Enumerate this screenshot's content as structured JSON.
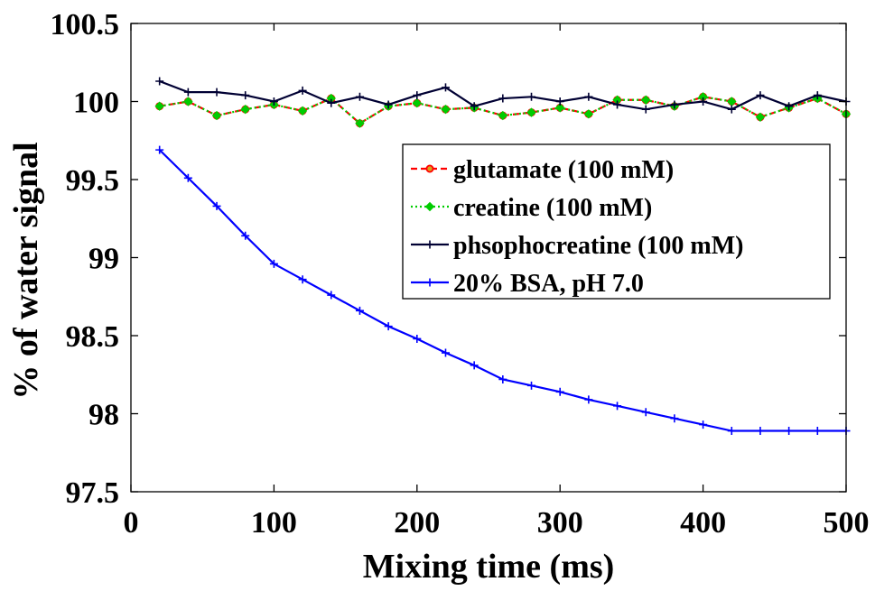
{
  "chart_data": {
    "type": "line",
    "title": "",
    "xlabel": "Mixing time (ms)",
    "ylabel": "% of water signal",
    "xlim": [
      0,
      500
    ],
    "ylim": [
      97.5,
      100.5
    ],
    "xticks": [
      0,
      100,
      200,
      300,
      400,
      500
    ],
    "xtick_labels": [
      "0",
      "100",
      "200",
      "300",
      "400",
      "500"
    ],
    "yticks": [
      97.5,
      98,
      98.5,
      99,
      99.5,
      100,
      100.5
    ],
    "ytick_labels": [
      "97.5",
      "98",
      "98.5",
      "99",
      "99.5",
      "100",
      "100.5"
    ],
    "grid": false,
    "legend_position": "upper-right",
    "x": [
      20,
      40,
      60,
      80,
      100,
      120,
      140,
      160,
      180,
      200,
      220,
      240,
      260,
      280,
      300,
      320,
      340,
      360,
      380,
      400,
      420,
      440,
      460,
      480,
      500
    ],
    "series": [
      {
        "name": "glutamate (100 mM)",
        "color": "#ff0000",
        "line_style": "dashed",
        "marker": "circle",
        "values": [
          99.97,
          100.0,
          99.91,
          99.95,
          99.98,
          99.94,
          100.02,
          99.86,
          99.97,
          99.99,
          99.95,
          99.96,
          99.91,
          99.93,
          99.96,
          99.92,
          100.01,
          100.01,
          99.97,
          100.03,
          100.0,
          99.9,
          99.96,
          100.02,
          99.92
        ]
      },
      {
        "name": "creatine (100 mM)",
        "color": "#00cc00",
        "line_style": "dotted",
        "marker": "diamond",
        "values": [
          99.97,
          100.0,
          99.91,
          99.95,
          99.98,
          99.94,
          100.02,
          99.86,
          99.97,
          99.99,
          99.95,
          99.96,
          99.91,
          99.93,
          99.96,
          99.92,
          100.01,
          100.01,
          99.97,
          100.03,
          100.0,
          99.9,
          99.96,
          100.02,
          99.92
        ]
      },
      {
        "name": "phsophocreatine (100 mM)",
        "color": "#000033",
        "line_style": "solid",
        "marker": "plus",
        "values": [
          100.13,
          100.06,
          100.06,
          100.04,
          100.0,
          100.07,
          99.99,
          100.03,
          99.98,
          100.04,
          100.09,
          99.97,
          100.02,
          100.03,
          100.0,
          100.03,
          99.98,
          99.95,
          99.98,
          100.0,
          99.95,
          100.04,
          99.97,
          100.04,
          100.0
        ]
      },
      {
        "name": "20% BSA, pH 7.0",
        "color": "#0000ff",
        "line_style": "solid",
        "marker": "plus",
        "values": [
          99.69,
          99.51,
          99.33,
          99.14,
          98.96,
          98.86,
          98.76,
          98.66,
          98.56,
          98.48,
          98.39,
          98.31,
          98.22,
          98.18,
          98.14,
          98.09,
          98.05,
          98.01,
          97.97,
          97.93,
          97.89,
          97.89,
          97.89,
          97.89,
          97.89
        ]
      }
    ]
  }
}
